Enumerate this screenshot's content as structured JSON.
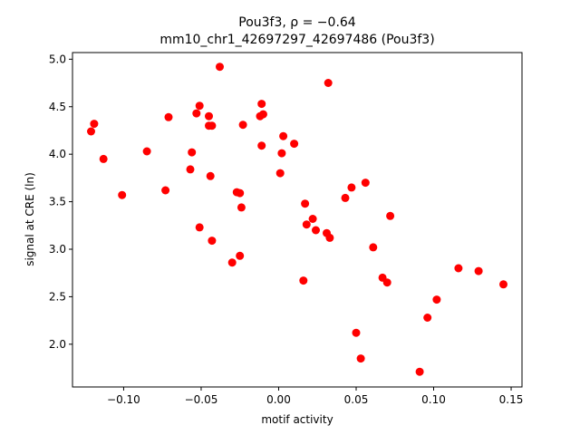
{
  "chart_data": {
    "type": "scatter",
    "title": "Pou3f3, ρ = −0.64",
    "subtitle": "mm10_chr1_42697297_42697486 (Pou3f3)",
    "xlabel": "motif activity",
    "ylabel": "signal at CRE (ln)",
    "xlim": [
      -0.133,
      0.157
    ],
    "ylim": [
      1.55,
      5.07
    ],
    "x_ticks": [
      -0.1,
      -0.05,
      0.0,
      0.05,
      0.1,
      0.15
    ],
    "x_tick_labels": [
      "−0.10",
      "−0.05",
      "0.00",
      "0.05",
      "0.10",
      "0.15"
    ],
    "y_ticks": [
      2.0,
      2.5,
      3.0,
      3.5,
      4.0,
      4.5,
      5.0
    ],
    "y_tick_labels": [
      "2.0",
      "2.5",
      "3.0",
      "3.5",
      "4.0",
      "4.5",
      "5.0"
    ],
    "grid": false,
    "marker_color": "#ff0000",
    "points": [
      {
        "x": -0.121,
        "y": 4.24
      },
      {
        "x": -0.119,
        "y": 4.32
      },
      {
        "x": -0.113,
        "y": 3.95
      },
      {
        "x": -0.101,
        "y": 3.57
      },
      {
        "x": -0.085,
        "y": 4.03
      },
      {
        "x": -0.073,
        "y": 3.62
      },
      {
        "x": -0.071,
        "y": 4.39
      },
      {
        "x": -0.057,
        "y": 3.84
      },
      {
        "x": -0.056,
        "y": 4.02
      },
      {
        "x": -0.053,
        "y": 4.43
      },
      {
        "x": -0.051,
        "y": 4.51
      },
      {
        "x": -0.051,
        "y": 3.23
      },
      {
        "x": -0.045,
        "y": 4.4
      },
      {
        "x": -0.045,
        "y": 4.3
      },
      {
        "x": -0.043,
        "y": 4.3
      },
      {
        "x": -0.044,
        "y": 3.77
      },
      {
        "x": -0.043,
        "y": 3.09
      },
      {
        "x": -0.038,
        "y": 4.92
      },
      {
        "x": -0.03,
        "y": 2.86
      },
      {
        "x": -0.027,
        "y": 3.6
      },
      {
        "x": -0.025,
        "y": 3.59
      },
      {
        "x": -0.025,
        "y": 2.93
      },
      {
        "x": -0.024,
        "y": 3.44
      },
      {
        "x": -0.023,
        "y": 4.31
      },
      {
        "x": -0.012,
        "y": 4.4
      },
      {
        "x": -0.011,
        "y": 4.53
      },
      {
        "x": -0.01,
        "y": 4.42
      },
      {
        "x": -0.011,
        "y": 4.09
      },
      {
        "x": 0.001,
        "y": 3.8
      },
      {
        "x": 0.002,
        "y": 4.01
      },
      {
        "x": 0.003,
        "y": 4.19
      },
      {
        "x": 0.01,
        "y": 4.11
      },
      {
        "x": 0.016,
        "y": 2.67
      },
      {
        "x": 0.017,
        "y": 3.48
      },
      {
        "x": 0.018,
        "y": 3.26
      },
      {
        "x": 0.022,
        "y": 3.32
      },
      {
        "x": 0.024,
        "y": 3.2
      },
      {
        "x": 0.031,
        "y": 3.17
      },
      {
        "x": 0.032,
        "y": 4.75
      },
      {
        "x": 0.033,
        "y": 3.12
      },
      {
        "x": 0.043,
        "y": 3.54
      },
      {
        "x": 0.047,
        "y": 3.65
      },
      {
        "x": 0.05,
        "y": 2.12
      },
      {
        "x": 0.053,
        "y": 1.85
      },
      {
        "x": 0.056,
        "y": 3.7
      },
      {
        "x": 0.061,
        "y": 3.02
      },
      {
        "x": 0.067,
        "y": 2.7
      },
      {
        "x": 0.07,
        "y": 2.65
      },
      {
        "x": 0.072,
        "y": 3.35
      },
      {
        "x": 0.091,
        "y": 1.71
      },
      {
        "x": 0.096,
        "y": 2.28
      },
      {
        "x": 0.102,
        "y": 2.47
      },
      {
        "x": 0.116,
        "y": 2.8
      },
      {
        "x": 0.129,
        "y": 2.77
      },
      {
        "x": 0.145,
        "y": 2.63
      }
    ]
  }
}
